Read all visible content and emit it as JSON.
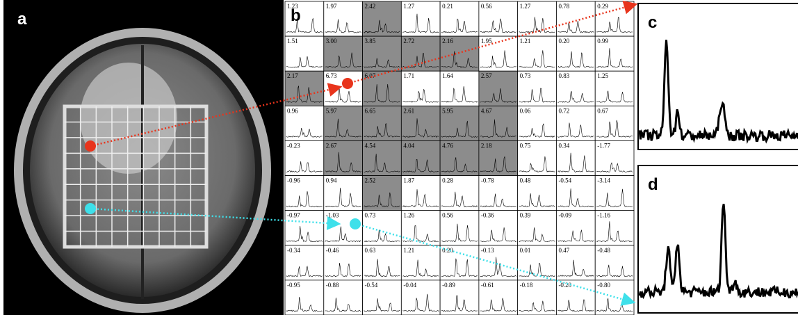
{
  "panel_a": {
    "label": "a"
  },
  "panel_b": {
    "label": "b",
    "rows": [
      [
        {
          "value": "1.23",
          "shaded": false
        },
        {
          "value": "1.97",
          "shaded": false
        },
        {
          "value": "2.42",
          "shaded": true
        },
        {
          "value": "1.27",
          "shaded": false
        },
        {
          "value": "0.21",
          "shaded": false
        },
        {
          "value": "0.56",
          "shaded": false
        },
        {
          "value": "1.27",
          "shaded": false
        },
        {
          "value": "0.78",
          "shaded": false
        },
        {
          "value": "0.29",
          "shaded": false
        }
      ],
      [
        {
          "value": "1.51",
          "shaded": false
        },
        {
          "value": "3.00",
          "shaded": true
        },
        {
          "value": "3.85",
          "shaded": true
        },
        {
          "value": "2.72",
          "shaded": true
        },
        {
          "value": "2.16",
          "shaded": true
        },
        {
          "value": "1.95",
          "shaded": false
        },
        {
          "value": "1.21",
          "shaded": false
        },
        {
          "value": "0.20",
          "shaded": false
        },
        {
          "value": "0.99",
          "shaded": false
        }
      ],
      [
        {
          "value": "2.17",
          "shaded": true
        },
        {
          "value": "6.73",
          "shaded": false
        },
        {
          "value": "6.07",
          "shaded": true
        },
        {
          "value": "1.71",
          "shaded": false
        },
        {
          "value": "1.64",
          "shaded": false
        },
        {
          "value": "2.57",
          "shaded": true
        },
        {
          "value": "0.73",
          "shaded": false
        },
        {
          "value": "0.83",
          "shaded": false
        },
        {
          "value": "1.25",
          "shaded": false
        }
      ],
      [
        {
          "value": "0.96",
          "shaded": false
        },
        {
          "value": "5.97",
          "shaded": true
        },
        {
          "value": "6.65",
          "shaded": true
        },
        {
          "value": "2.61",
          "shaded": true
        },
        {
          "value": "5.95",
          "shaded": true
        },
        {
          "value": "4.67",
          "shaded": true
        },
        {
          "value": "0.06",
          "shaded": false
        },
        {
          "value": "0.72",
          "shaded": false
        },
        {
          "value": "0.67",
          "shaded": false
        }
      ],
      [
        {
          "value": "-0.23",
          "shaded": false
        },
        {
          "value": "2.67",
          "shaded": true
        },
        {
          "value": "4.54",
          "shaded": true
        },
        {
          "value": "4.04",
          "shaded": true
        },
        {
          "value": "4.76",
          "shaded": true
        },
        {
          "value": "2.18",
          "shaded": true
        },
        {
          "value": "0.75",
          "shaded": false
        },
        {
          "value": "0.34",
          "shaded": false
        },
        {
          "value": "-1.77",
          "shaded": false
        }
      ],
      [
        {
          "value": "-0.96",
          "shaded": false
        },
        {
          "value": "0.94",
          "shaded": false
        },
        {
          "value": "2.52",
          "shaded": true
        },
        {
          "value": "1.87",
          "shaded": false
        },
        {
          "value": "0.28",
          "shaded": false
        },
        {
          "value": "-0.78",
          "shaded": false
        },
        {
          "value": "0.48",
          "shaded": false
        },
        {
          "value": "-0.54",
          "shaded": false
        },
        {
          "value": "-3.14",
          "shaded": false
        }
      ],
      [
        {
          "value": "-0.97",
          "shaded": false
        },
        {
          "value": "-1.03",
          "shaded": false
        },
        {
          "value": "0.73",
          "shaded": false
        },
        {
          "value": "1.26",
          "shaded": false
        },
        {
          "value": "0.56",
          "shaded": false
        },
        {
          "value": "-0.36",
          "shaded": false
        },
        {
          "value": "0.39",
          "shaded": false
        },
        {
          "value": "-0.09",
          "shaded": false
        },
        {
          "value": "-1.16",
          "shaded": false
        }
      ],
      [
        {
          "value": "-0.34",
          "shaded": false
        },
        {
          "value": "-0.46",
          "shaded": false
        },
        {
          "value": "0.63",
          "shaded": false
        },
        {
          "value": "1.21",
          "shaded": false
        },
        {
          "value": "0.20",
          "shaded": false
        },
        {
          "value": "-0.13",
          "shaded": false
        },
        {
          "value": "0.01",
          "shaded": false
        },
        {
          "value": "0.47",
          "shaded": false
        },
        {
          "value": "-0.48",
          "shaded": false
        }
      ],
      [
        {
          "value": "-0.95",
          "shaded": false
        },
        {
          "value": "-0.88",
          "shaded": false
        },
        {
          "value": "-0.54",
          "shaded": false
        },
        {
          "value": "-0.04",
          "shaded": false
        },
        {
          "value": "-0.89",
          "shaded": false
        },
        {
          "value": "-0.61",
          "shaded": false
        },
        {
          "value": "-0.18",
          "shaded": false
        },
        {
          "value": "-0.20",
          "shaded": false
        },
        {
          "value": "-0.80",
          "shaded": false
        }
      ]
    ]
  },
  "panel_c": {
    "label": "c"
  },
  "panel_d": {
    "label": "d"
  }
}
